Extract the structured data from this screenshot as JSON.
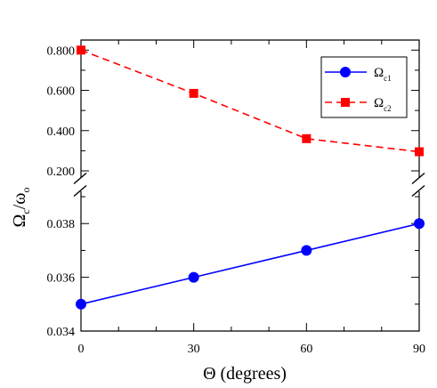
{
  "chart_data": {
    "type": "line",
    "x": [
      0,
      30,
      60,
      90
    ],
    "xlim": [
      0,
      90
    ],
    "x_ticks": [
      "0",
      "30",
      "60",
      "90"
    ],
    "xlabel": "Θ (degrees)",
    "ylabel_main": "Ω",
    "ylabel_sub1": "c",
    "ylabel_slash": "/ω",
    "ylabel_sub2": "o",
    "y_axis_broken": true,
    "upper_panel": {
      "ylim": [
        0.2,
        0.85
      ],
      "y_ticks": [
        "0.800",
        "0.600",
        "0.400",
        "0.200"
      ],
      "y_tick_values": [
        0.8,
        0.6,
        0.4,
        0.2
      ]
    },
    "lower_panel": {
      "ylim": [
        0.034,
        0.0392
      ],
      "y_ticks": [
        "0.038",
        "0.036",
        "0.034"
      ],
      "y_tick_values": [
        0.038,
        0.036,
        0.034
      ]
    },
    "series": [
      {
        "name_main": "Ω",
        "name_sub": "c1",
        "panel": "lower",
        "values": [
          0.035,
          0.036,
          0.037,
          0.038
        ],
        "color": "#0000ff",
        "marker": "circle",
        "line": "solid"
      },
      {
        "name_main": "Ω",
        "name_sub": "c2",
        "panel": "upper",
        "values": [
          0.8,
          0.585,
          0.36,
          0.295
        ],
        "color": "#ff0000",
        "marker": "square",
        "line": "dashed"
      }
    ],
    "legend_position": "top-right",
    "grid": false
  }
}
